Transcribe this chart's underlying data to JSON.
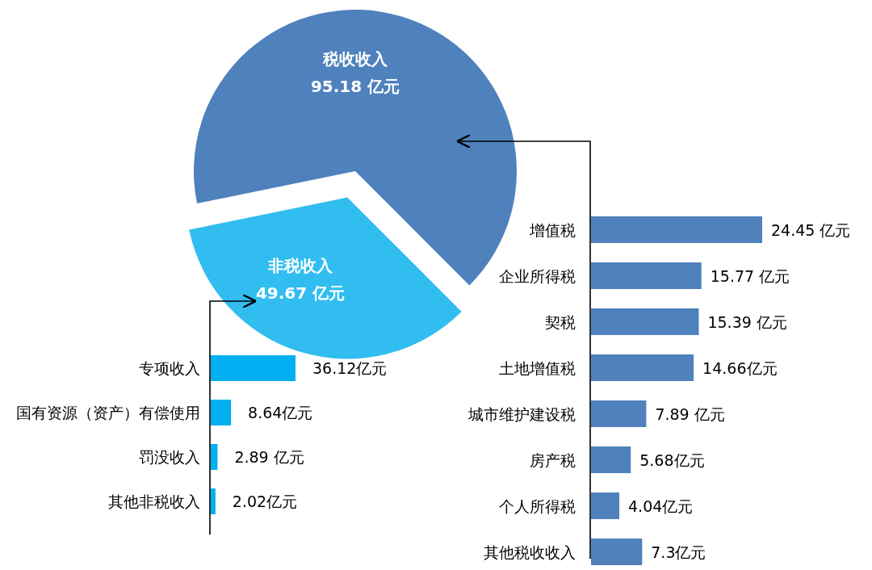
{
  "chart_data": [
    {
      "type": "pie",
      "categories": [
        "税收收入",
        "非税收入"
      ],
      "values": [
        95.18,
        49.67
      ],
      "colors": [
        "#4f81bd",
        "#31bdf0"
      ],
      "value_labels": [
        "95.18 亿元",
        "49.67 亿元"
      ]
    },
    {
      "type": "bar",
      "orientation": "horizontal",
      "categories": [
        "专项收入",
        "国有资源（资产）有偿使用",
        "罚没收入",
        "其他非税收入"
      ],
      "values": [
        36.12,
        8.64,
        2.89,
        2.02
      ],
      "color": "#00b0f0",
      "value_labels": [
        "36.12亿元",
        "8.64亿元",
        "2.89 亿元",
        "2.02亿元"
      ]
    },
    {
      "type": "bar",
      "orientation": "horizontal",
      "categories": [
        "增值税",
        "企业所得税",
        "契税",
        "土地增值税",
        "城市维护建设税",
        "房产税",
        "个人所得税",
        "其他税收收入"
      ],
      "values": [
        24.45,
        15.77,
        15.39,
        14.66,
        7.89,
        5.68,
        4.04,
        7.3
      ],
      "color": "#4f81bd",
      "value_labels": [
        "24.45 亿元",
        "15.77 亿元",
        "15.39 亿元",
        "14.66亿元",
        "7.89 亿元",
        "5.68亿元",
        "4.04亿元",
        "7.3亿元"
      ]
    }
  ]
}
